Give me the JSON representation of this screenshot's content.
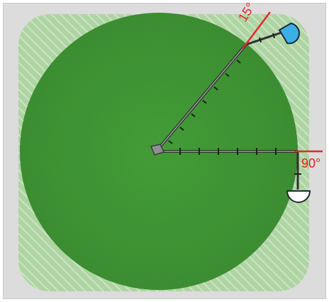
{
  "field": {
    "grass_color": "#2f8a23",
    "zone_color": "#8fcf7f",
    "background": "#dcdcdc"
  },
  "pivot": {
    "spans": [
      {
        "name": "diagonal-span",
        "segment_count": 8
      },
      {
        "name": "horizontal-span",
        "segment_count": 8
      }
    ]
  },
  "markers": {
    "start_angle_label": "15°",
    "end_angle_label": "90°",
    "line_color": "#e8262d"
  },
  "handles": {
    "diagonal_end_color": "#3ab0e6",
    "horizontal_end_color": "#ffffff"
  },
  "icons": {
    "center": "pivot-center-icon",
    "end_gun_blue": "end-gun-half-circle-icon",
    "end_gun_white": "end-gun-half-circle-icon"
  }
}
